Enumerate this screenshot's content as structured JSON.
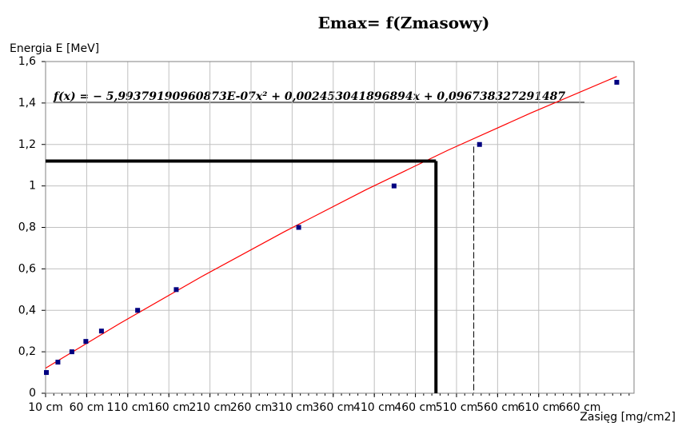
{
  "chart_data": {
    "type": "scatter",
    "title": "Emax= f(Zmasowy)",
    "y_label": "Energia E [MeV]",
    "x_label": "Zasięg  [mg/cm2]",
    "annotation": "f(x) = − 5,99379190960873E-07x² + 0,002453041896894x + 0,096738327291487",
    "xlim": [
      10,
      726
    ],
    "ylim": [
      0,
      1.6
    ],
    "xticks": [
      {
        "value": 10,
        "label": "10 cm"
      },
      {
        "value": 60,
        "label": "60 cm"
      },
      {
        "value": 110,
        "label": "110 cm"
      },
      {
        "value": 160,
        "label": "160 cm"
      },
      {
        "value": 210,
        "label": "210 cm"
      },
      {
        "value": 260,
        "label": "260 cm"
      },
      {
        "value": 310,
        "label": "310 cm"
      },
      {
        "value": 360,
        "label": "360 cm"
      },
      {
        "value": 410,
        "label": "410 cm"
      },
      {
        "value": 460,
        "label": "460 cm"
      },
      {
        "value": 510,
        "label": "510 cm"
      },
      {
        "value": 560,
        "label": "560 cm"
      },
      {
        "value": 610,
        "label": "610 cm"
      },
      {
        "value": 660,
        "label": "660 cm"
      }
    ],
    "yticks": [
      0,
      {
        "value": 0.2,
        "label": "0,2"
      },
      {
        "value": 0.4,
        "label": "0,4"
      },
      {
        "value": 0.6,
        "label": "0,6"
      },
      {
        "value": 0.8,
        "label": "0,8"
      },
      1,
      {
        "value": 1.2,
        "label": "1,2"
      },
      {
        "value": 1.4,
        "label": "1,4"
      },
      {
        "value": 1.6,
        "label": "1,6"
      }
    ],
    "grid": true,
    "points": {
      "color": "#000080",
      "x": [
        11,
        25,
        42,
        59,
        78,
        122,
        169,
        318,
        434,
        538,
        705
      ],
      "values": [
        0.1,
        0.15,
        0.2,
        0.25,
        0.3,
        0.4,
        0.5,
        0.8,
        1.0,
        1.2,
        1.5
      ]
    },
    "trend": {
      "color": "#ff0000",
      "x": [
        10,
        100,
        200,
        300,
        400,
        500,
        600,
        705
      ],
      "values": [
        0.121,
        0.336,
        0.563,
        0.778,
        0.982,
        1.173,
        1.351,
        1.528
      ]
    },
    "reference_lines": [
      {
        "x": 485,
        "y": 1.12,
        "style": "solid"
      },
      {
        "x": 531,
        "y": 1.19,
        "style": "dashed"
      }
    ]
  }
}
